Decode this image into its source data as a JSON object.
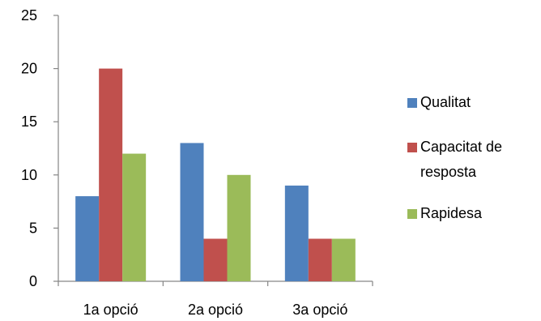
{
  "chart_data": {
    "type": "bar",
    "title": "",
    "xlabel": "",
    "ylabel": "",
    "categories": [
      "1a opció",
      "2a opció",
      "3a opció"
    ],
    "series": [
      {
        "name": "Qualitat",
        "values": [
          8,
          13,
          9
        ],
        "color": "#4F81BD"
      },
      {
        "name": "Capacitat de resposta",
        "values": [
          20,
          4,
          4
        ],
        "color": "#C0504D"
      },
      {
        "name": "Rapidesa",
        "values": [
          12,
          10,
          4
        ],
        "color": "#9BBB59"
      }
    ],
    "ylim": [
      0,
      25
    ],
    "yticks": [
      "0",
      "5",
      "10",
      "15",
      "20",
      "25"
    ],
    "grid": false,
    "legend_position": "right",
    "legend_labels": [
      [
        "Qualitat"
      ],
      [
        "Capacitat de",
        "resposta"
      ],
      [
        "Rapidesa"
      ]
    ]
  }
}
